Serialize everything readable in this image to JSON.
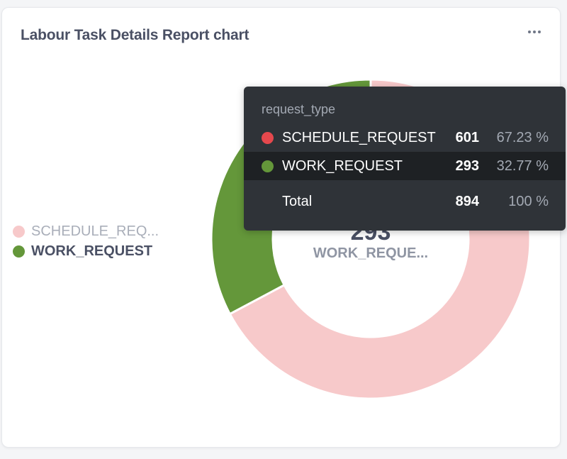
{
  "card": {
    "title": "Labour Task Details Report chart",
    "menu_icon": "more-horizontal-icon"
  },
  "legend": [
    {
      "label": "SCHEDULE_REQ...",
      "color": "#f7c9ca",
      "state": "muted"
    },
    {
      "label": "WORK_REQUEST",
      "color": "#64973a",
      "state": "active"
    }
  ],
  "center": {
    "value": "293",
    "label": "WORK_REQUE..."
  },
  "tooltip": {
    "header": "request_type",
    "rows": [
      {
        "name": "SCHEDULE_REQUEST",
        "value": "601",
        "percent": "67.23 %",
        "color": "#e5484d"
      },
      {
        "name": "WORK_REQUEST",
        "value": "293",
        "percent": "32.77 %",
        "color": "#64973a"
      }
    ],
    "total": {
      "name": "Total",
      "value": "894",
      "percent": "100 %"
    }
  },
  "chart_data": {
    "type": "pie",
    "variant": "donut",
    "categories": [
      "SCHEDULE_REQUEST",
      "WORK_REQUEST"
    ],
    "values": [
      601,
      293
    ],
    "percentages": [
      67.23,
      32.77
    ],
    "total": 894,
    "colors": [
      "#f7c9ca",
      "#64973a"
    ],
    "highlighted": "WORK_REQUEST",
    "legend_position": "left"
  }
}
